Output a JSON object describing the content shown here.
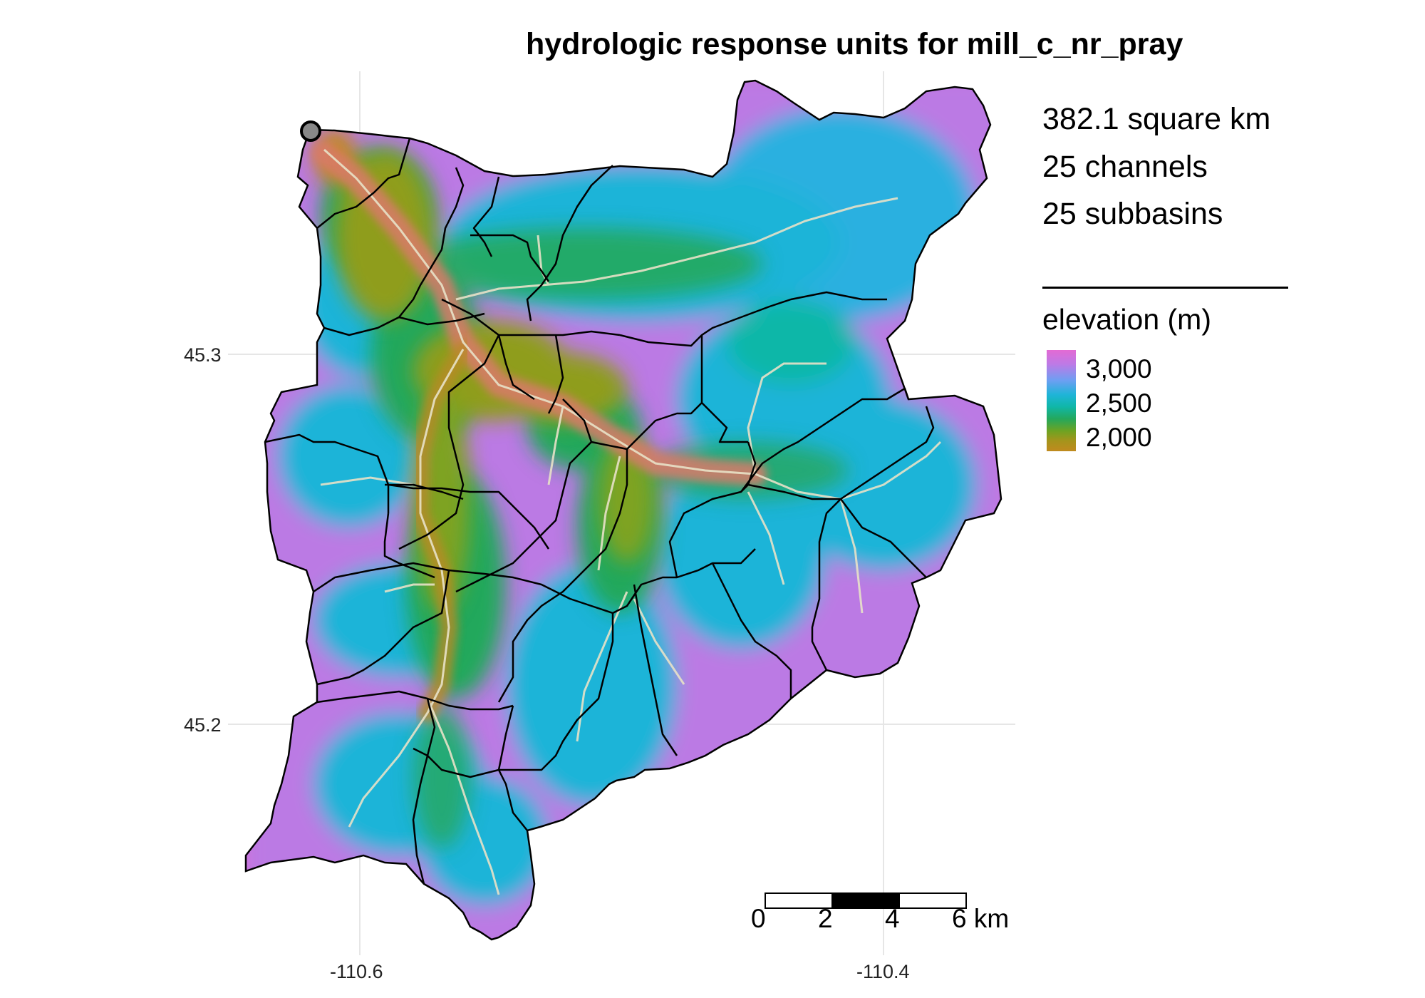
{
  "title": "hydrologic response units for mill_c_nr_pray",
  "stats": {
    "area": "382.1 square km",
    "channels": "25 channels",
    "subbasins": "25 subbasins"
  },
  "legend": {
    "title": "elevation (m)",
    "ticks": [
      "3,000",
      "2,500",
      "2,000"
    ]
  },
  "axes": {
    "lat_ticks": [
      "45.3",
      "45.2"
    ],
    "lon_ticks": [
      "-110.6",
      "-110.4"
    ]
  },
  "scalebar": {
    "labels": [
      "0",
      "2",
      "4",
      "6 km"
    ]
  },
  "colors": {
    "high": "#e36ad4",
    "mid_high": "#1fb4d8",
    "mid": "#24a85c",
    "low": "#c08a1e",
    "valley": "#d97a6a",
    "channel": "#e8e2c8",
    "boundary": "#000000",
    "outlet": "#888888"
  },
  "icons": {
    "outlet": "outlet-marker-icon"
  }
}
